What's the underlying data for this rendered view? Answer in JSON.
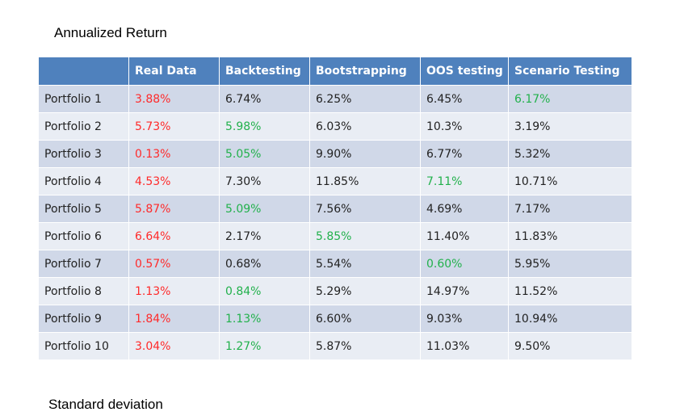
{
  "title": "Annualized Return",
  "colors": {
    "header_bg": "#4f81bd",
    "row_odd": "#d0d8e8",
    "row_even": "#e9edf4",
    "red": "#ff2a2a",
    "green": "#22b14c"
  },
  "table": {
    "headers": [
      "",
      "Real Data",
      "Backtesting",
      "Bootstrapping",
      "OOS testing",
      "Scenario Testing"
    ],
    "rows": [
      {
        "cells": [
          "Portfolio 1",
          "3.88%",
          "6.74%",
          "6.25%",
          "6.45%",
          "6.17%"
        ],
        "colors": [
          "",
          "red",
          "",
          "",
          "",
          "green"
        ]
      },
      {
        "cells": [
          "Portfolio 2",
          "5.73%",
          "5.98%",
          "6.03%",
          "10.3%",
          "3.19%"
        ],
        "colors": [
          "",
          "red",
          "green",
          "",
          "",
          ""
        ]
      },
      {
        "cells": [
          "Portfolio 3",
          "0.13%",
          "5.05%",
          "9.90%",
          "6.77%",
          "5.32%"
        ],
        "colors": [
          "",
          "red",
          "green",
          "",
          "",
          ""
        ]
      },
      {
        "cells": [
          "Portfolio 4",
          "4.53%",
          "7.30%",
          "11.85%",
          "7.11%",
          "10.71%"
        ],
        "colors": [
          "",
          "red",
          "",
          "",
          "green",
          ""
        ]
      },
      {
        "cells": [
          "Portfolio 5",
          "5.87%",
          "5.09%",
          "7.56%",
          "4.69%",
          "7.17%"
        ],
        "colors": [
          "",
          "red",
          "green",
          "",
          "",
          ""
        ]
      },
      {
        "cells": [
          "Portfolio 6",
          "6.64%",
          "2.17%",
          "5.85%",
          "11.40%",
          "11.83%"
        ],
        "colors": [
          "",
          "red",
          "",
          "green",
          "",
          ""
        ]
      },
      {
        "cells": [
          "Portfolio 7",
          "0.57%",
          "0.68%",
          "5.54%",
          "0.60%",
          "5.95%"
        ],
        "colors": [
          "",
          "red",
          "",
          "",
          "green",
          ""
        ]
      },
      {
        "cells": [
          "Portfolio 8",
          "1.13%",
          "0.84%",
          "5.29%",
          "14.97%",
          "11.52%"
        ],
        "colors": [
          "",
          "red",
          "green",
          "",
          "",
          ""
        ]
      },
      {
        "cells": [
          "Portfolio 9",
          "1.84%",
          "1.13%",
          "6.60%",
          "9.03%",
          "10.94%"
        ],
        "colors": [
          "",
          "red",
          "green",
          "",
          "",
          ""
        ]
      },
      {
        "cells": [
          "Portfolio 10",
          "3.04%",
          "1.27%",
          "5.87%",
          "11.03%",
          "9.50%"
        ],
        "colors": [
          "",
          "red",
          "green",
          "",
          "",
          ""
        ]
      }
    ]
  },
  "next_section_title": "Standard deviation"
}
